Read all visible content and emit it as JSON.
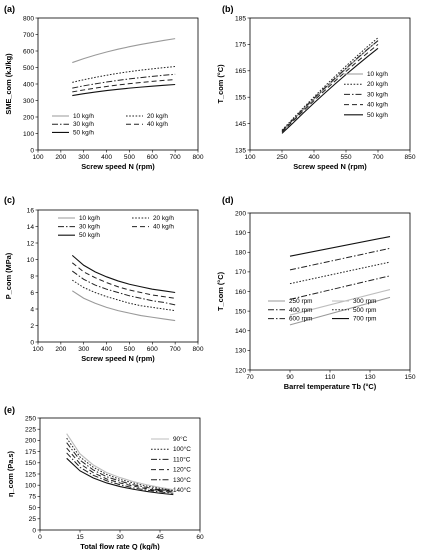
{
  "chart_data": [
    {
      "id": "a",
      "panel_label": "(a)",
      "type": "line",
      "xlabel": "Screw speed N (rpm)",
      "ylabel": "SME_com (kJ/kg)",
      "xlim": [
        100,
        800
      ],
      "ylim": [
        0,
        800
      ],
      "xticks": [
        100,
        200,
        300,
        400,
        500,
        600,
        700,
        800
      ],
      "yticks": [
        0,
        100,
        200,
        300,
        400,
        500,
        600,
        700,
        800
      ],
      "legend_columns": 2,
      "legend_position": "lower-left",
      "series": [
        {
          "name": "10 kg/h",
          "style": "solid-gray",
          "x": [
            250,
            300,
            350,
            400,
            450,
            500,
            550,
            600,
            650,
            700
          ],
          "y": [
            530,
            554,
            575,
            594,
            611,
            626,
            640,
            652,
            664,
            675
          ]
        },
        {
          "name": "20 kg/h",
          "style": "dotted",
          "x": [
            250,
            300,
            350,
            400,
            450,
            500,
            550,
            600,
            650,
            700
          ],
          "y": [
            410,
            426,
            440,
            453,
            465,
            475,
            484,
            492,
            499,
            506
          ]
        },
        {
          "name": "30 kg/h",
          "style": "dashdot",
          "x": [
            250,
            300,
            350,
            400,
            450,
            500,
            550,
            600,
            650,
            700
          ],
          "y": [
            375,
            389,
            401,
            412,
            422,
            431,
            439,
            446,
            453,
            459
          ]
        },
        {
          "name": "40 kg/h",
          "style": "dashed",
          "x": [
            250,
            300,
            350,
            400,
            450,
            500,
            550,
            600,
            650,
            700
          ],
          "y": [
            352,
            364,
            375,
            385,
            394,
            402,
            409,
            416,
            422,
            427
          ]
        },
        {
          "name": "50 kg/h",
          "style": "solid-black",
          "x": [
            250,
            300,
            350,
            400,
            450,
            500,
            550,
            600,
            650,
            700
          ],
          "y": [
            330,
            341,
            351,
            360,
            368,
            375,
            381,
            387,
            392,
            397
          ]
        }
      ]
    },
    {
      "id": "b",
      "panel_label": "(b)",
      "type": "line",
      "xlabel": "Screw speed N (rpm)",
      "ylabel": "T_com (°C)",
      "xlim": [
        100,
        850
      ],
      "ylim": [
        135,
        185
      ],
      "xticks": [
        100,
        250,
        400,
        550,
        700,
        850
      ],
      "yticks": [
        135,
        145,
        155,
        165,
        175,
        185
      ],
      "legend_columns": 1,
      "legend_position": "right",
      "series": [
        {
          "name": "10 kg/h",
          "style": "solid-gray",
          "x": [
            250,
            300,
            350,
            400,
            450,
            500,
            550,
            600,
            650,
            700
          ],
          "y": [
            142,
            146.2,
            150.3,
            154.3,
            158.2,
            162.0,
            165.7,
            169.4,
            173.0,
            176.5
          ]
        },
        {
          "name": "20 kg/h",
          "style": "dotted",
          "x": [
            250,
            300,
            350,
            400,
            450,
            500,
            550,
            600,
            650,
            700
          ],
          "y": [
            142.5,
            146.8,
            151.0,
            155.1,
            159.1,
            163.0,
            166.8,
            170.5,
            174.1,
            177.5
          ]
        },
        {
          "name": "30 kg/h",
          "style": "dashdot",
          "x": [
            250,
            300,
            350,
            400,
            450,
            500,
            550,
            600,
            650,
            700
          ],
          "y": [
            142.2,
            146.4,
            150.6,
            154.6,
            158.5,
            162.3,
            166.0,
            169.6,
            173.1,
            176.4
          ]
        },
        {
          "name": "40 kg/h",
          "style": "dashed",
          "x": [
            250,
            300,
            350,
            400,
            450,
            500,
            550,
            600,
            650,
            700
          ],
          "y": [
            141.8,
            145.8,
            149.8,
            153.7,
            157.5,
            161.2,
            164.8,
            168.3,
            171.7,
            175.0
          ]
        },
        {
          "name": "50 kg/h",
          "style": "solid-black",
          "x": [
            250,
            300,
            350,
            400,
            450,
            500,
            550,
            600,
            650,
            700
          ],
          "y": [
            141.3,
            145.1,
            149.0,
            152.8,
            156.5,
            160.1,
            163.6,
            167.0,
            170.3,
            173.5
          ]
        }
      ]
    },
    {
      "id": "c",
      "panel_label": "(c)",
      "type": "line",
      "xlabel": "Screw speed N (rpm)",
      "ylabel": "P_com (MPa)",
      "xlim": [
        100,
        800
      ],
      "ylim": [
        0,
        16
      ],
      "xticks": [
        100,
        200,
        300,
        400,
        500,
        600,
        700,
        800
      ],
      "yticks": [
        0,
        2,
        4,
        6,
        8,
        10,
        12,
        14,
        16
      ],
      "legend_columns": 2,
      "legend_position": "top",
      "series": [
        {
          "name": "10 kg/h",
          "style": "solid-gray",
          "x": [
            250,
            300,
            350,
            400,
            450,
            500,
            550,
            600,
            650,
            700
          ],
          "y": [
            6.2,
            5.3,
            4.7,
            4.2,
            3.8,
            3.5,
            3.2,
            3.0,
            2.8,
            2.6
          ]
        },
        {
          "name": "20 kg/h",
          "style": "dotted",
          "x": [
            250,
            300,
            350,
            400,
            450,
            500,
            550,
            600,
            650,
            700
          ],
          "y": [
            7.5,
            6.6,
            6.0,
            5.5,
            5.1,
            4.7,
            4.4,
            4.2,
            4.0,
            3.8
          ]
        },
        {
          "name": "30 kg/h",
          "style": "dashdot",
          "x": [
            250,
            300,
            350,
            400,
            450,
            500,
            550,
            600,
            650,
            700
          ],
          "y": [
            8.6,
            7.6,
            6.9,
            6.4,
            6.0,
            5.6,
            5.3,
            5.0,
            4.8,
            4.5
          ]
        },
        {
          "name": "40 kg/h",
          "style": "dashed",
          "x": [
            250,
            300,
            350,
            400,
            450,
            500,
            550,
            600,
            650,
            700
          ],
          "y": [
            9.6,
            8.5,
            7.8,
            7.2,
            6.7,
            6.3,
            6.0,
            5.7,
            5.5,
            5.3
          ]
        },
        {
          "name": "50 kg/h",
          "style": "solid-black",
          "x": [
            250,
            300,
            350,
            400,
            450,
            500,
            550,
            600,
            650,
            700
          ],
          "y": [
            10.5,
            9.3,
            8.5,
            7.9,
            7.4,
            7.0,
            6.7,
            6.4,
            6.2,
            6.0
          ]
        }
      ]
    },
    {
      "id": "d",
      "panel_label": "(d)",
      "type": "line",
      "xlabel": "Barrel temperature Tb (°C)",
      "ylabel": "T_com (°C)",
      "xlim": [
        70,
        150
      ],
      "ylim": [
        120,
        200
      ],
      "xticks": [
        70,
        90,
        110,
        130,
        150
      ],
      "yticks": [
        120,
        130,
        140,
        150,
        160,
        170,
        180,
        190,
        200
      ],
      "legend_columns": 2,
      "legend_position": "bottom",
      "series": [
        {
          "name": "250 rpm",
          "style": "solid-gray",
          "x": [
            90,
            140
          ],
          "y": [
            143,
            157
          ]
        },
        {
          "name": "300 rpm",
          "style": "solid-lightgray",
          "x": [
            90,
            140
          ],
          "y": [
            148,
            161
          ]
        },
        {
          "name": "400 rpm",
          "style": "dashdot",
          "x": [
            90,
            140
          ],
          "y": [
            156,
            168
          ]
        },
        {
          "name": "500 rpm",
          "style": "dotted",
          "x": [
            90,
            140
          ],
          "y": [
            164,
            175
          ]
        },
        {
          "name": "600 rpm",
          "style": "dashdot",
          "x": [
            90,
            140
          ],
          "y": [
            171,
            182
          ]
        },
        {
          "name": "700 rpm",
          "style": "solid-black",
          "x": [
            90,
            140
          ],
          "y": [
            178,
            188
          ]
        }
      ]
    },
    {
      "id": "e",
      "panel_label": "(e)",
      "type": "line",
      "xlabel": "Total flow rate Q (kg/h)",
      "ylabel": "η_com (Pa.s)",
      "xlim": [
        0,
        60
      ],
      "ylim": [
        0,
        250
      ],
      "xticks": [
        0,
        15,
        30,
        45,
        60
      ],
      "yticks": [
        0,
        25,
        50,
        75,
        100,
        125,
        150,
        175,
        200,
        225,
        250
      ],
      "legend_columns": 1,
      "legend_position": "top-right",
      "series": [
        {
          "name": "90°C",
          "style": "solid-lightgray",
          "x": [
            10,
            15,
            20,
            25,
            30,
            35,
            40,
            45,
            50
          ],
          "y": [
            215,
            170,
            145,
            128,
            117,
            108,
            101,
            95,
            90
          ]
        },
        {
          "name": "100°C",
          "style": "dotted",
          "x": [
            10,
            15,
            20,
            25,
            30,
            35,
            40,
            45,
            50
          ],
          "y": [
            205,
            163,
            140,
            124,
            113,
            105,
            98,
            93,
            88
          ]
        },
        {
          "name": "110°C",
          "style": "dashdot",
          "x": [
            10,
            15,
            20,
            25,
            30,
            35,
            40,
            45,
            50
          ],
          "y": [
            195,
            156,
            134,
            119,
            109,
            101,
            95,
            90,
            86
          ]
        },
        {
          "name": "120°C",
          "style": "dashed",
          "x": [
            10,
            15,
            20,
            25,
            30,
            35,
            40,
            45,
            50
          ],
          "y": [
            183,
            148,
            128,
            114,
            105,
            98,
            92,
            87,
            84
          ]
        },
        {
          "name": "130°C",
          "style": "dashdot",
          "x": [
            10,
            15,
            20,
            25,
            30,
            35,
            40,
            45,
            50
          ],
          "y": [
            172,
            140,
            122,
            110,
            101,
            94,
            89,
            85,
            82
          ]
        },
        {
          "name": "140°C",
          "style": "solid-black",
          "x": [
            10,
            15,
            20,
            25,
            30,
            35,
            40,
            45,
            50
          ],
          "y": [
            160,
            132,
            116,
            105,
            97,
            91,
            86,
            82,
            79
          ]
        }
      ]
    }
  ]
}
